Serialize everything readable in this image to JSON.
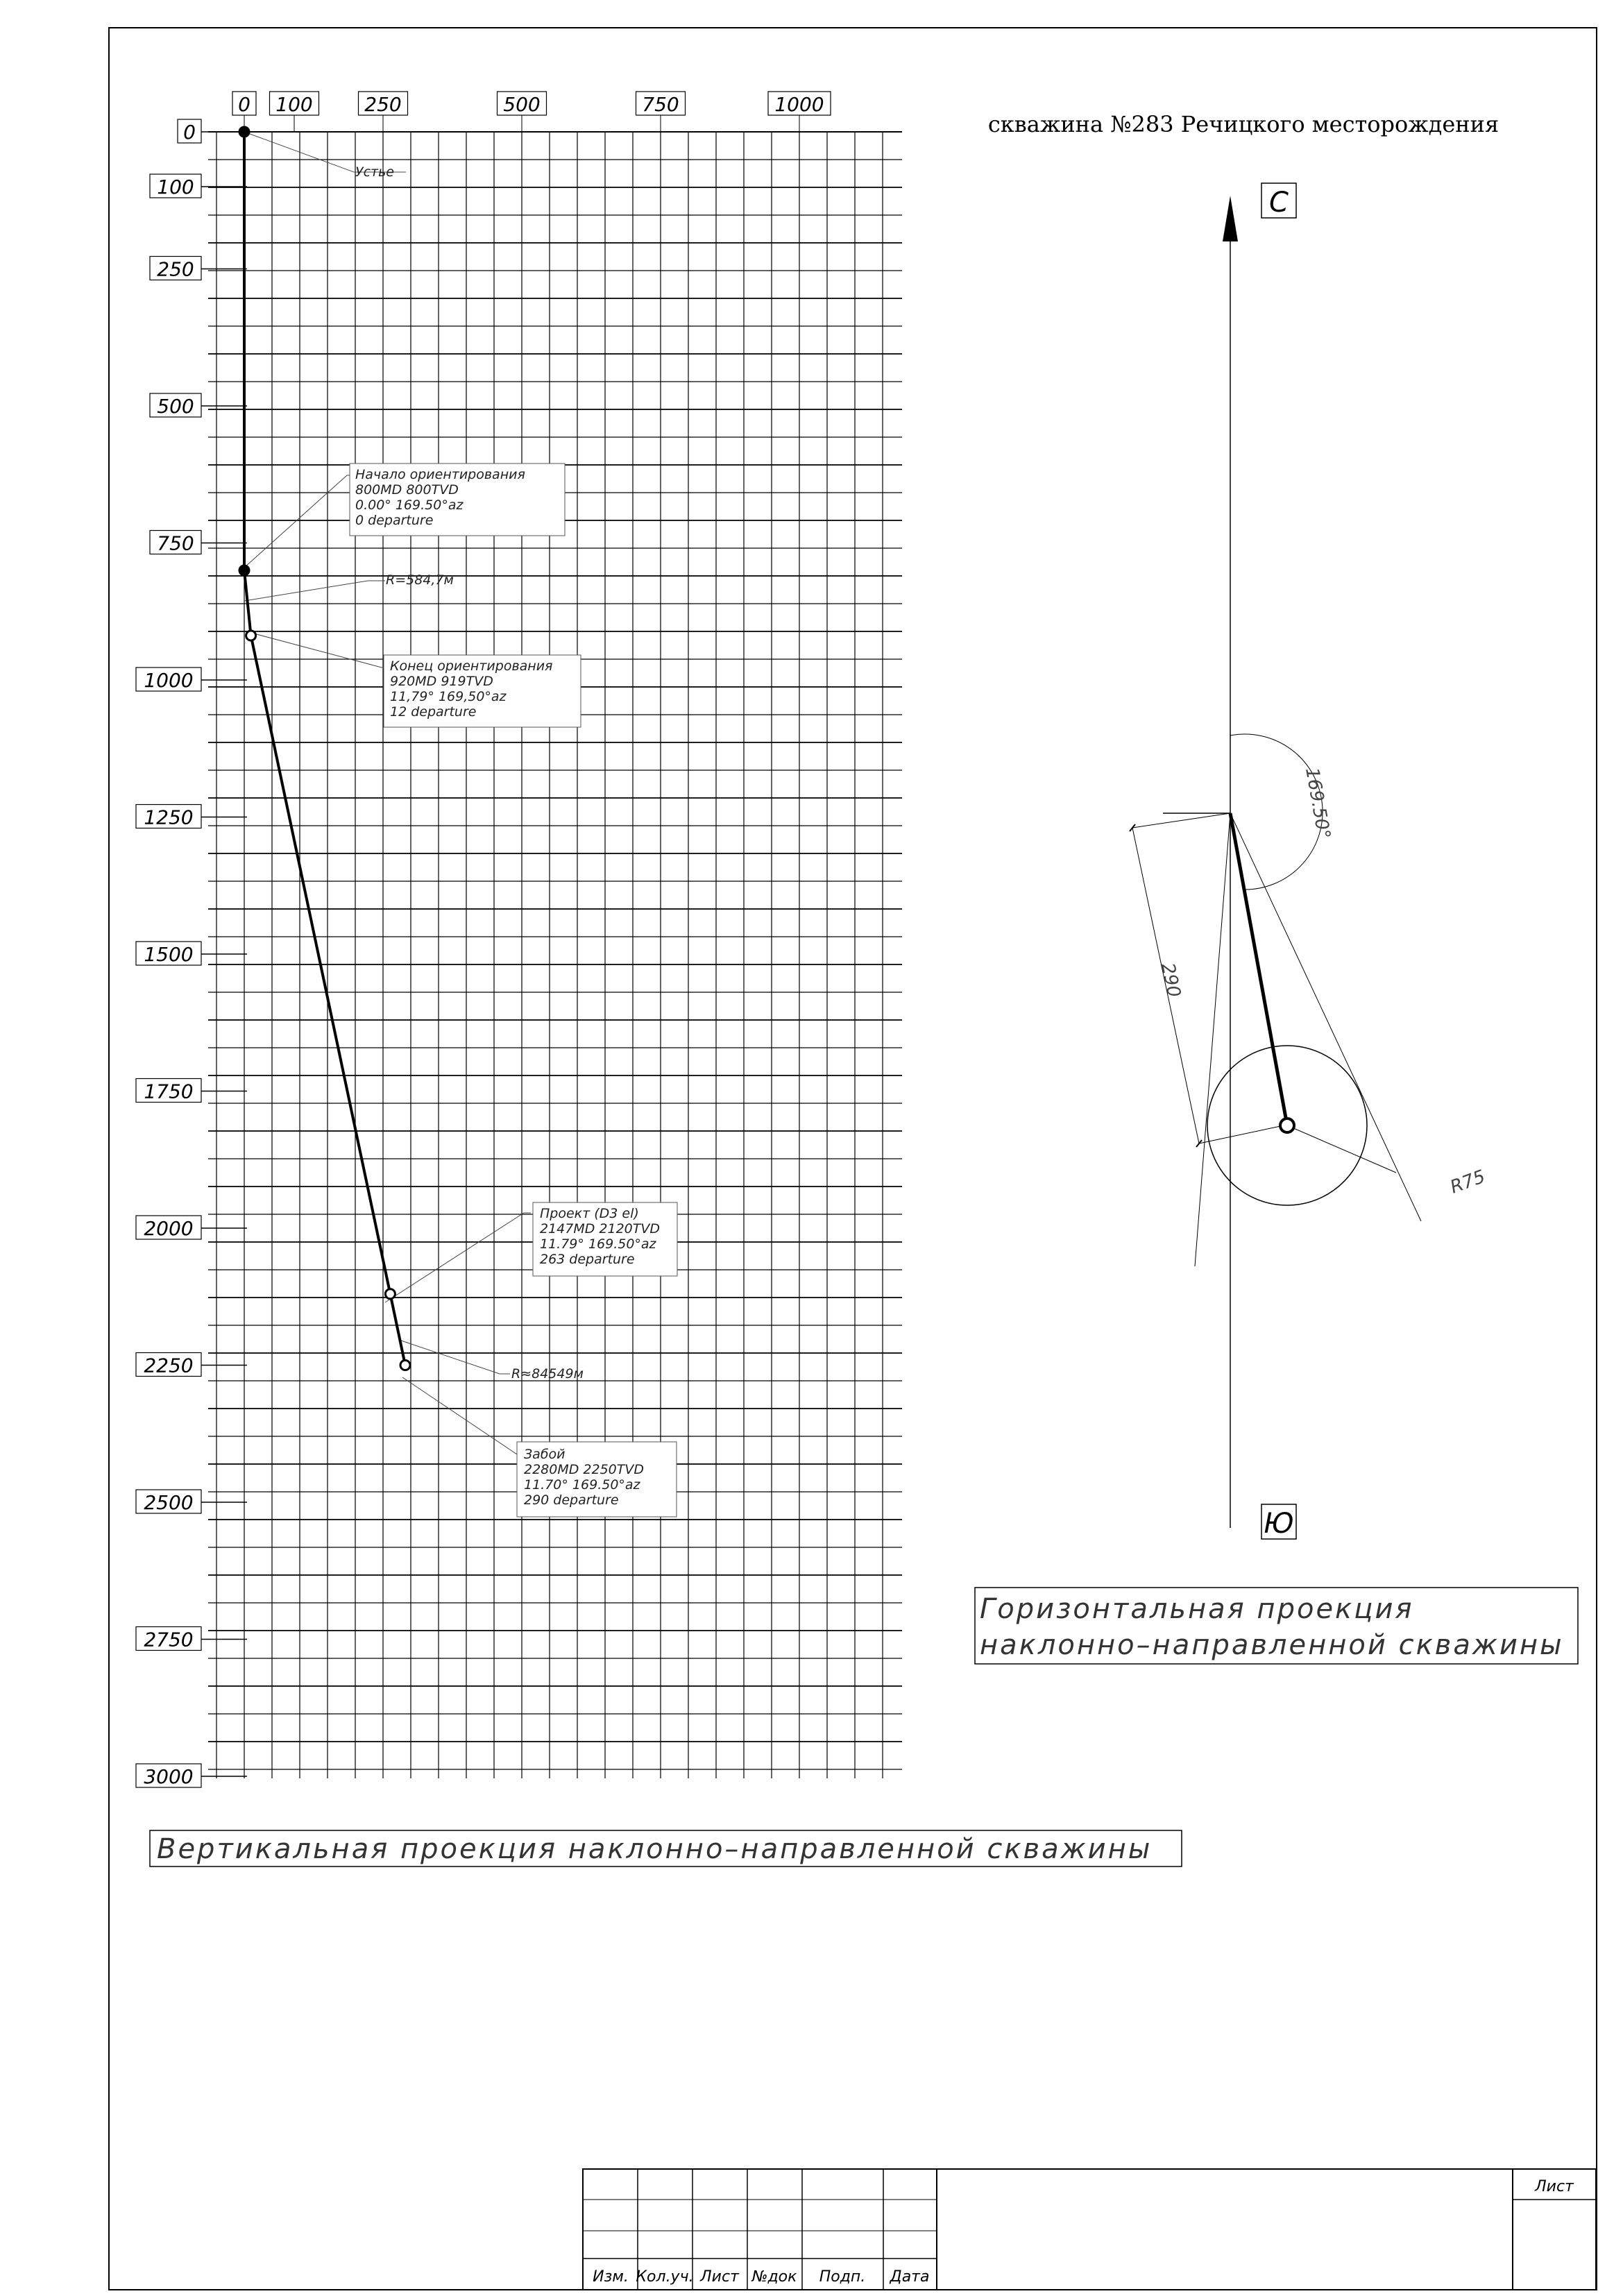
{
  "page_title": "скважина №283 Речицкого месторождения",
  "vertical_projection": {
    "caption": "Вертикальная проекция наклонно–направленной скважины",
    "x_ticks": [
      "0",
      "100",
      "250",
      "500",
      "750",
      "1000"
    ],
    "y_ticks": [
      "0",
      "100",
      "250",
      "500",
      "750",
      "1000",
      "1250",
      "1500",
      "1750",
      "2000",
      "2250",
      "2500",
      "2750",
      "3000"
    ],
    "trajectory": [
      {
        "departure": 0,
        "tvd": 0
      },
      {
        "departure": 0,
        "tvd": 800
      },
      {
        "departure": 12,
        "tvd": 919
      },
      {
        "departure": 263,
        "tvd": 2120
      },
      {
        "departure": 290,
        "tvd": 2250
      }
    ],
    "annotations": [
      {
        "lines": [
          "Устье"
        ]
      },
      {
        "lines": [
          "Начало ориентирования",
          "800MD  800TVD",
          "0.00°  169.50°az",
          "0  departure"
        ]
      },
      {
        "lines": [
          "R=584,7м"
        ]
      },
      {
        "lines": [
          "Конец ориентирования",
          "920MD  919TVD",
          "11,79°  169,50°az",
          "12  departure"
        ]
      },
      {
        "lines": [
          "Проект (D3 el)",
          "2147MD  2120TVD",
          "11.79°  169.50°az",
          "263  departure"
        ]
      },
      {
        "lines": [
          "R≈84549м"
        ]
      },
      {
        "lines": [
          "Забой",
          "2280MD  2250TVD",
          "11.70°  169.50°az",
          "290  departure"
        ]
      }
    ]
  },
  "horizontal_projection": {
    "caption_line1": "Горизонтальная  проекция",
    "caption_line2": "наклонно–направленной  скважины",
    "north_label": "С",
    "south_label": "Ю",
    "azimuth_label": "169.50°",
    "distance_label": "290",
    "radius_label": "R75",
    "azimuth_deg": 169.5,
    "departure": 290,
    "target_radius": 75
  },
  "title_block": {
    "headers": [
      "Изм.",
      "Кол.уч.",
      "Лист",
      "№док",
      "Подп.",
      "Дата"
    ],
    "sheet_label": "Лист"
  }
}
